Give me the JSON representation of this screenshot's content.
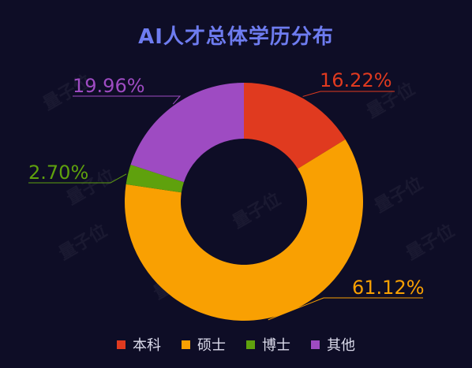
{
  "chart_data": {
    "type": "pie",
    "variant": "donut",
    "title": "AI人才总体学历分布",
    "categories": [
      "本科",
      "硕士",
      "博士",
      "其他"
    ],
    "values": [
      16.22,
      61.12,
      2.7,
      19.96
    ],
    "labels": [
      "16.22%",
      "61.12%",
      "2.70%",
      "19.96%"
    ],
    "colors": [
      "#e03a1f",
      "#f9a002",
      "#5fa10d",
      "#9e4bc2"
    ],
    "title_color": "#6e7cf0",
    "legend_position": "bottom",
    "watermark_text": "量子位"
  }
}
